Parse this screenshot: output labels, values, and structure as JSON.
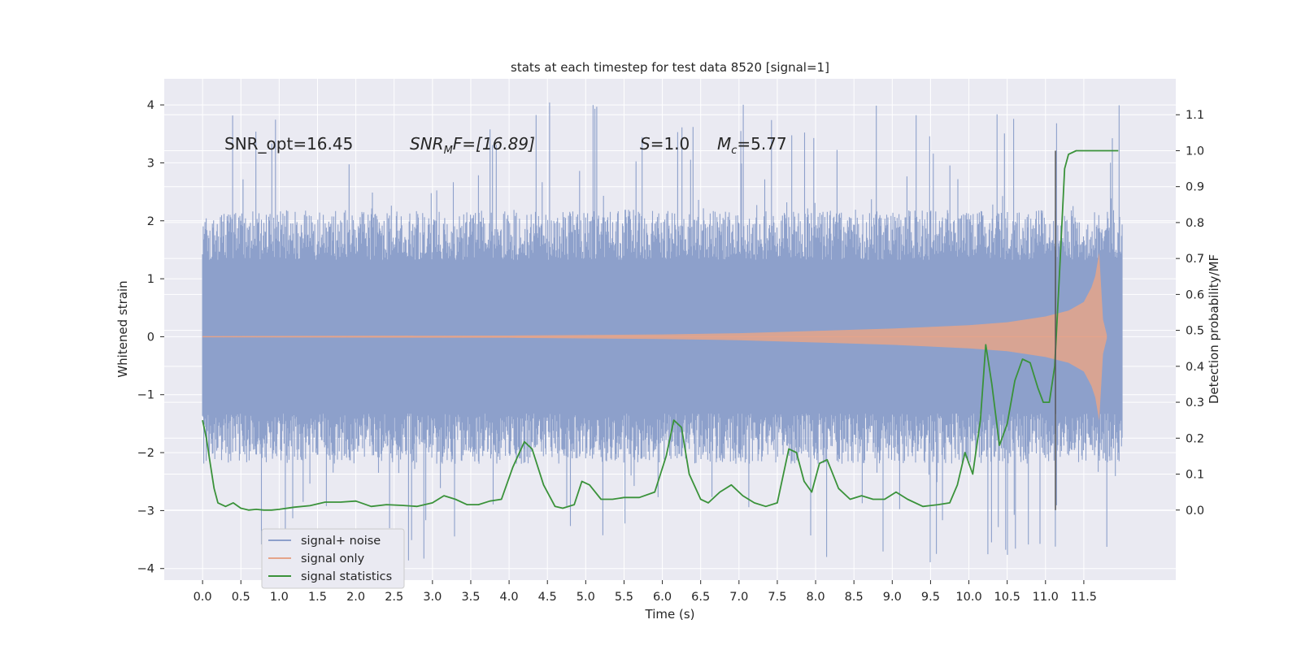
{
  "chart_data": {
    "type": "line",
    "title": "stats at each timestep for test data 8520 [signal=1]",
    "xlabel": "Time (s)",
    "ylabel": "Whitened strain",
    "ylabel_right": "Detection probability/MF",
    "xlim": [
      -0.5,
      12.7
    ],
    "ylim": [
      -4.2,
      4.45
    ],
    "ylim_right": [
      -0.195,
      1.2
    ],
    "x_ticks": [
      "0.0",
      "0.5",
      "1.0",
      "1.5",
      "2.0",
      "2.5",
      "3.0",
      "3.5",
      "4.0",
      "4.5",
      "5.0",
      "5.5",
      "6.0",
      "6.5",
      "7.0",
      "7.5",
      "8.0",
      "8.5",
      "9.0",
      "9.5",
      "10.0",
      "10.5",
      "11.0",
      "11.5"
    ],
    "y_ticks": [
      "−4",
      "−3",
      "−2",
      "−1",
      "0",
      "1",
      "2",
      "3",
      "4"
    ],
    "y_ticks_right": [
      "0.0",
      "0.1",
      "0.2",
      "0.3",
      "0.4",
      "0.5",
      "0.6",
      "0.7",
      "0.8",
      "0.9",
      "1.0",
      "1.1"
    ],
    "annotations": {
      "snr_opt": "SNR_opt=16.45",
      "snr_mf_label": "SNR",
      "snr_mf_sub": "M",
      "snr_mf_value": "F=[16.89]",
      "s_label": "S",
      "s_value": "=1.0",
      "mc_label": "M",
      "mc_sub": "c",
      "mc_value": "=5.77"
    },
    "legend": {
      "placement": "lower-left",
      "entries": [
        "signal+ noise",
        "signal only",
        "signal statistics"
      ]
    },
    "vline_x": 11.13,
    "grid": true,
    "colors": {
      "signal_noise": "#8da0cb",
      "signal_only": "#e5a48a",
      "statistics": "#3a923a",
      "vline": "#555555",
      "background": "#eaeaf2",
      "grid": "#ffffff"
    },
    "series": [
      {
        "name": "signal+ noise",
        "axis": "left",
        "kind": "noise-band",
        "x_range": [
          0.0,
          12.0
        ],
        "typical_envelope": [
          -1.6,
          1.6
        ],
        "extreme_range": [
          -3.9,
          4.1
        ]
      },
      {
        "name": "signal only",
        "axis": "left",
        "kind": "chirp-envelope",
        "x": [
          0.0,
          2.0,
          4.0,
          6.0,
          7.0,
          8.0,
          9.0,
          10.0,
          10.5,
          11.0,
          11.3,
          11.5,
          11.6,
          11.65,
          11.7,
          11.75,
          11.8
        ],
        "envelope": [
          0.01,
          0.015,
          0.02,
          0.04,
          0.06,
          0.1,
          0.14,
          0.2,
          0.25,
          0.35,
          0.45,
          0.6,
          0.85,
          1.05,
          1.45,
          0.3,
          0.03
        ]
      },
      {
        "name": "signal statistics",
        "axis": "right",
        "x": [
          0.0,
          0.05,
          0.1,
          0.15,
          0.2,
          0.3,
          0.4,
          0.5,
          0.6,
          0.7,
          0.8,
          0.9,
          1.0,
          1.2,
          1.4,
          1.6,
          1.8,
          2.0,
          2.2,
          2.4,
          2.6,
          2.8,
          3.0,
          3.15,
          3.3,
          3.45,
          3.6,
          3.75,
          3.9,
          4.05,
          4.2,
          4.3,
          4.45,
          4.6,
          4.7,
          4.85,
          4.95,
          5.05,
          5.2,
          5.35,
          5.5,
          5.7,
          5.9,
          6.05,
          6.15,
          6.25,
          6.35,
          6.5,
          6.6,
          6.75,
          6.9,
          7.05,
          7.2,
          7.35,
          7.5,
          7.65,
          7.75,
          7.85,
          7.95,
          8.05,
          8.15,
          8.3,
          8.45,
          8.6,
          8.75,
          8.9,
          9.05,
          9.2,
          9.4,
          9.6,
          9.75,
          9.85,
          9.95,
          10.05,
          10.15,
          10.22,
          10.3,
          10.4,
          10.5,
          10.6,
          10.7,
          10.8,
          10.9,
          10.97,
          11.05,
          11.12,
          11.18,
          11.25,
          11.3,
          11.4,
          11.6,
          11.8,
          11.95
        ],
        "values": [
          0.25,
          0.2,
          0.13,
          0.06,
          0.02,
          0.01,
          0.02,
          0.005,
          0.0,
          0.002,
          0.0,
          0.0,
          0.002,
          0.008,
          0.012,
          0.022,
          0.022,
          0.025,
          0.01,
          0.015,
          0.013,
          0.01,
          0.02,
          0.04,
          0.03,
          0.015,
          0.015,
          0.025,
          0.03,
          0.12,
          0.19,
          0.17,
          0.07,
          0.01,
          0.005,
          0.015,
          0.08,
          0.07,
          0.03,
          0.03,
          0.035,
          0.035,
          0.05,
          0.15,
          0.25,
          0.23,
          0.1,
          0.03,
          0.02,
          0.05,
          0.07,
          0.04,
          0.02,
          0.01,
          0.02,
          0.17,
          0.16,
          0.08,
          0.05,
          0.13,
          0.14,
          0.06,
          0.03,
          0.04,
          0.03,
          0.03,
          0.05,
          0.03,
          0.01,
          0.015,
          0.02,
          0.07,
          0.16,
          0.1,
          0.25,
          0.46,
          0.35,
          0.18,
          0.24,
          0.36,
          0.42,
          0.41,
          0.34,
          0.3,
          0.3,
          0.4,
          0.65,
          0.95,
          0.99,
          1.0,
          1.0,
          1.0,
          1.0
        ]
      }
    ]
  }
}
